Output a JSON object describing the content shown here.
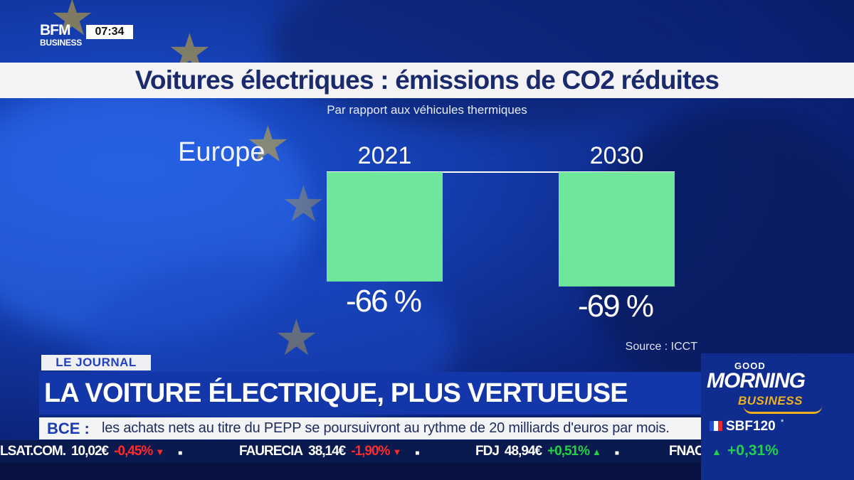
{
  "channel": {
    "logo_line1": "BFM",
    "logo_line2": "BUSINESS",
    "time": "07:34"
  },
  "chart_data": {
    "type": "bar",
    "title": "Voitures électriques : émissions de CO2 réduites",
    "subtitle": "Par rapport aux véhicules thermiques",
    "region": "Europe",
    "categories": [
      "2021",
      "2030"
    ],
    "values": [
      -66,
      -69
    ],
    "value_labels": [
      "-66 %",
      "-69 %"
    ],
    "unit": "%",
    "bar_color": "#6ee69b",
    "ylim": [
      -70,
      0
    ],
    "source": "Source : ICCT"
  },
  "lower_third": {
    "tag": "LE JOURNAL",
    "headline": "LA VOITURE ÉLECTRIQUE, PLUS VERTUEUSE",
    "ticker_label": "BCE :",
    "ticker_text": "les achats nets au titre du PEPP se poursuivront au rythme de 20 milliards d'euros par mois."
  },
  "stocks": [
    {
      "name": "LSAT.COM.",
      "price": "10,02€",
      "change": "-0,45%",
      "dir": "down"
    },
    {
      "name": "FAURECIA",
      "price": "38,14€",
      "change": "-1,90%",
      "dir": "down"
    },
    {
      "name": "FDJ",
      "price": "48,94€",
      "change": "+0,51%",
      "dir": "up"
    },
    {
      "name": "FNAC",
      "price": "",
      "change": "",
      "dir": "none"
    }
  ],
  "show": {
    "line1": "GOOD",
    "line2": "MORNING",
    "line3": "BUSINESS"
  },
  "index": {
    "name": "SBF120",
    "marker": "*",
    "change": "+0,31%"
  },
  "colors": {
    "accent_blue": "#1337a8",
    "title_blue": "#1a2a6c",
    "up": "#22d04a",
    "down": "#ff2a2a"
  }
}
